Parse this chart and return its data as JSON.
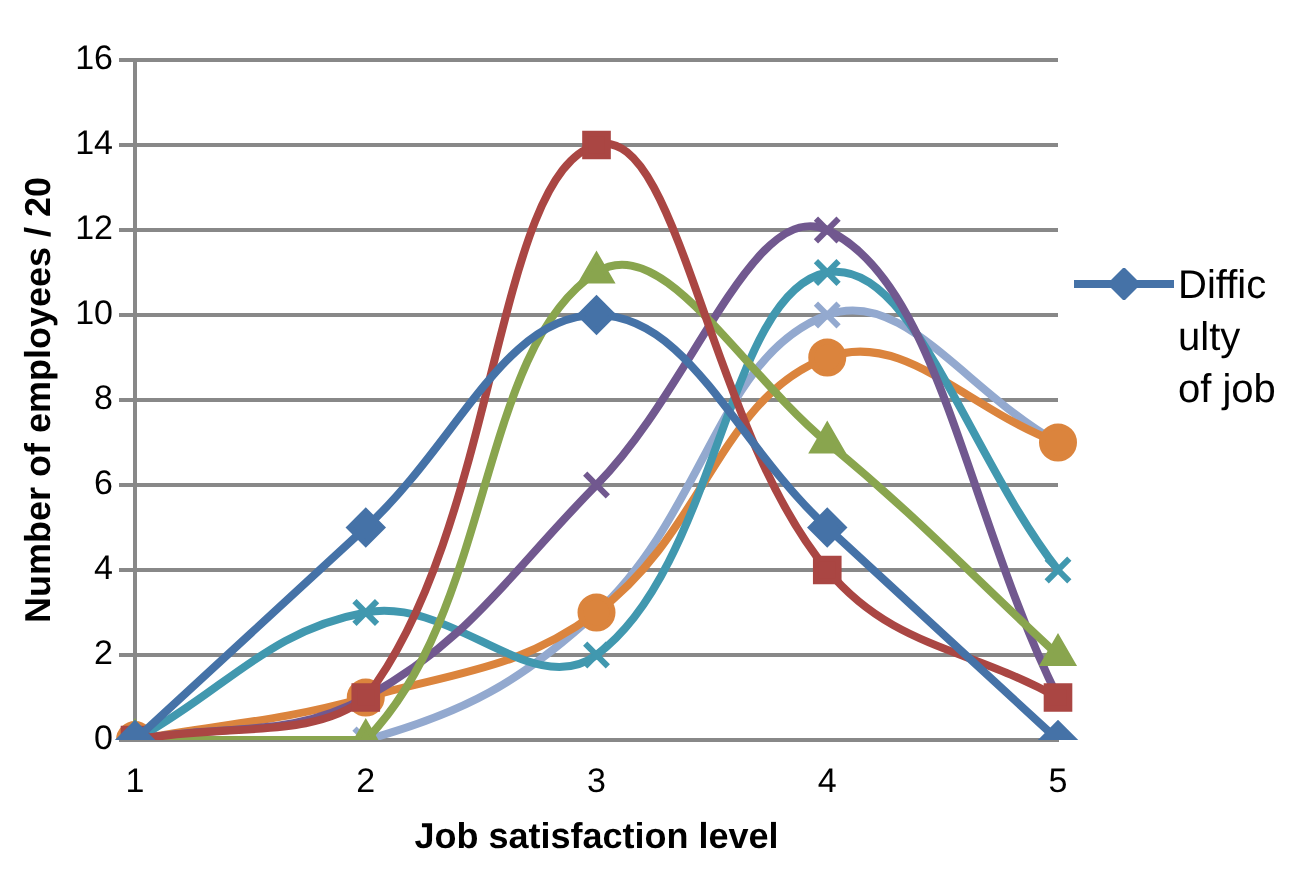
{
  "chart_data": {
    "type": "line",
    "xlabel": "Job satisfaction level",
    "ylabel": "Number of employees / 20",
    "categories": [
      "1",
      "2",
      "3",
      "4",
      "5"
    ],
    "ylim": [
      0,
      16
    ],
    "yticks": [
      0,
      2,
      4,
      6,
      8,
      10,
      12,
      14,
      16
    ],
    "grid": "y",
    "legend": "right",
    "series": [
      {
        "name": "Difficulty of job",
        "color": "#4572a7",
        "marker": "diamond",
        "values": [
          0,
          5,
          10,
          5,
          0
        ]
      },
      {
        "color": "#aa4643",
        "marker": "square",
        "values": [
          0,
          1,
          14,
          4,
          1
        ]
      },
      {
        "color": "#89a54e",
        "marker": "triangle",
        "values": [
          0,
          0,
          11,
          7,
          2
        ]
      },
      {
        "color": "#71588f",
        "marker": "cross",
        "values": [
          0,
          1,
          6,
          12,
          1
        ]
      },
      {
        "color": "#4198af",
        "marker": "cross",
        "values": [
          0,
          3,
          2,
          11,
          4
        ]
      },
      {
        "color": "#db843d",
        "marker": "circle",
        "values": [
          0,
          1,
          3,
          9,
          7
        ]
      },
      {
        "color": "#93a9cf",
        "marker": "cross",
        "values": [
          0,
          0,
          3,
          10,
          7
        ]
      }
    ]
  }
}
